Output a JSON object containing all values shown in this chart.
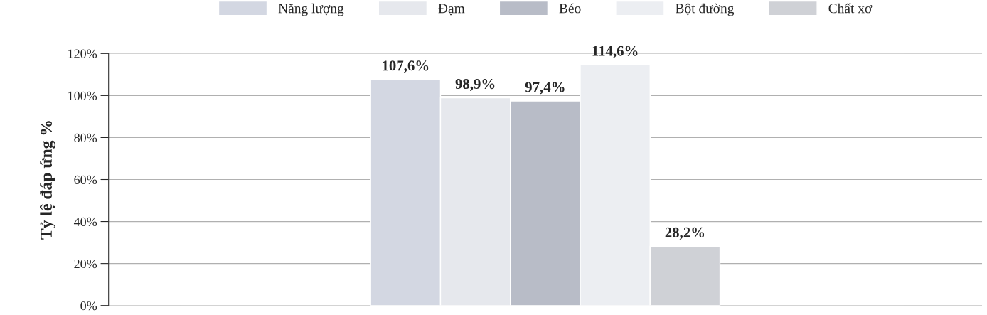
{
  "chart_data": {
    "type": "bar",
    "ylabel": "Tỷ lệ đáp ứng %",
    "categories": [
      null
    ],
    "series": [
      {
        "name": "Năng lượng",
        "color": "#d3d7e2",
        "values": [
          107.6
        ]
      },
      {
        "name": "Đạm",
        "color": "#e6e8ed",
        "values": [
          98.9
        ]
      },
      {
        "name": "Béo",
        "color": "#b8bcc7",
        "values": [
          97.4
        ]
      },
      {
        "name": "Bột đường",
        "color": "#eceef2",
        "values": [
          114.6
        ]
      },
      {
        "name": "Chất xơ",
        "color": "#cfd1d6",
        "values": [
          28.2
        ]
      }
    ],
    "value_labels": [
      [
        "107,6%"
      ],
      [
        "98,9%"
      ],
      [
        "97,4%"
      ],
      [
        "114,6%"
      ],
      [
        "28,2%"
      ]
    ],
    "ylim": [
      0,
      120
    ],
    "yticks": [
      {
        "value": 0,
        "label": "0%"
      },
      {
        "value": 20,
        "label": "20%"
      },
      {
        "value": 40,
        "label": "40%"
      },
      {
        "value": 60,
        "label": "60%"
      },
      {
        "value": 80,
        "label": "80%"
      },
      {
        "value": 100,
        "label": "100%"
      },
      {
        "value": 120,
        "label": "120%"
      }
    ],
    "grid": "y",
    "legend": "top",
    "tick_labels": "y"
  }
}
